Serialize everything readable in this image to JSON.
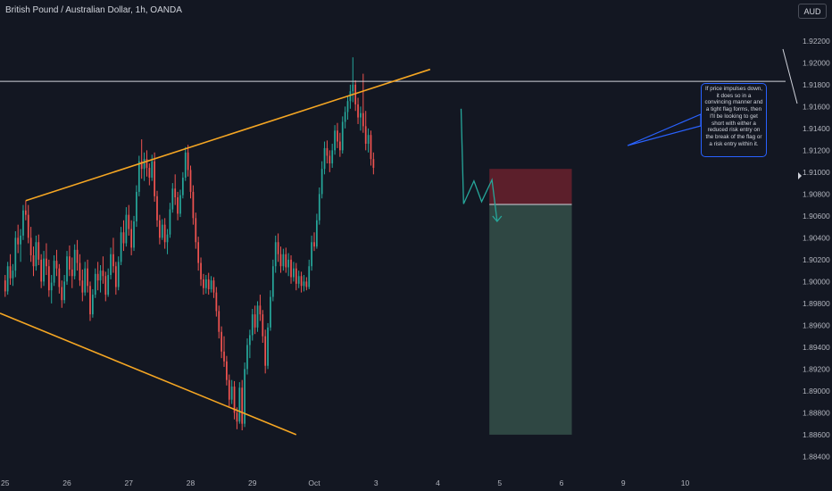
{
  "header": {
    "title": "British Pound / Australian Dollar, 1h, OANDA",
    "currency": "AUD"
  },
  "annotation": {
    "text": "If price impulses down, it does so in a convincing manner and a tight flag forms, then I'll be looking to get short with either a reduced risk entry on the break of the flag or a risk entry within it."
  },
  "colors": {
    "background": "#131722",
    "bullish": "#26a69a",
    "bearish": "#ef5350",
    "trendline": "#f5a623",
    "resistance": "#d1d4dc",
    "stop_zone": "#5c1f2b",
    "target_zone": "#2f4743",
    "projection": "#26a69a",
    "callout": "#2962ff"
  },
  "chart_data": {
    "type": "candlestick",
    "symbol": "GBPAUD",
    "timeframe": "1h",
    "y_ticks": [
      "1.92200",
      "1.92000",
      "1.91800",
      "1.91600",
      "1.91400",
      "1.91200",
      "1.91000",
      "1.90800",
      "1.90600",
      "1.90400",
      "1.90200",
      "1.90000",
      "1.89800",
      "1.89600",
      "1.89400",
      "1.89200",
      "1.89000",
      "1.88800",
      "1.88600",
      "1.88400"
    ],
    "x_ticks": [
      {
        "label": "25",
        "t": 0
      },
      {
        "label": "26",
        "t": 24
      },
      {
        "label": "27",
        "t": 48
      },
      {
        "label": "28",
        "t": 72
      },
      {
        "label": "29",
        "t": 96
      },
      {
        "label": "Oct",
        "t": 120
      },
      {
        "label": "3",
        "t": 144
      },
      {
        "label": "4",
        "t": 168
      },
      {
        "label": "5",
        "t": 192
      },
      {
        "label": "6",
        "t": 216
      },
      {
        "label": "9",
        "t": 240
      },
      {
        "label": "10",
        "t": 264
      }
    ],
    "ylim": [
      1.8833,
      1.9237
    ],
    "xlim": [
      -2,
      303
    ],
    "resistance_level": 1.9183,
    "trendlines": [
      {
        "t1": 8,
        "p1": 1.9074,
        "t2": 165,
        "p2": 1.9194
      },
      {
        "t1": -2,
        "p1": 1.8971,
        "t2": 113,
        "p2": 1.886
      }
    ],
    "position": {
      "stop_zone": [
        1.9103,
        1.90705
      ],
      "target_zone": [
        1.90705,
        1.886
      ],
      "t_start": 188,
      "t_end": 220
    },
    "projection_path": [
      {
        "t": 177,
        "p": 1.9158
      },
      {
        "t": 178,
        "p": 1.9071
      },
      {
        "t": 182,
        "p": 1.9092
      },
      {
        "t": 185,
        "p": 1.9073
      },
      {
        "t": 189,
        "p": 1.9093
      },
      {
        "t": 191,
        "p": 1.9055
      }
    ],
    "candles": [
      [
        1.9001,
        1.9006,
        1.8986,
        1.8991
      ],
      [
        1.8991,
        1.9018,
        1.8988,
        1.9014
      ],
      [
        1.9014,
        1.9025,
        1.8997,
        1.9003
      ],
      [
        1.9003,
        1.9016,
        1.8996,
        1.901
      ],
      [
        1.901,
        1.9046,
        1.9004,
        1.904
      ],
      [
        1.904,
        1.9052,
        1.9026,
        1.9034
      ],
      [
        1.9034,
        1.9048,
        1.9018,
        1.9042
      ],
      [
        1.9042,
        1.907,
        1.9038,
        1.9065
      ],
      [
        1.9065,
        1.9074,
        1.9056,
        1.9061
      ],
      [
        1.9061,
        1.907,
        1.9035,
        1.904
      ],
      [
        1.904,
        1.905,
        1.9018,
        1.9024
      ],
      [
        1.9024,
        1.9032,
        1.9005,
        1.9014
      ],
      [
        1.9014,
        1.9042,
        1.901,
        1.9036
      ],
      [
        1.9036,
        1.9043,
        1.9015,
        1.902
      ],
      [
        1.902,
        1.9025,
        1.8994,
        1.9
      ],
      [
        1.9,
        1.9028,
        1.8996,
        1.9021
      ],
      [
        1.9021,
        1.9035,
        1.9006,
        1.9014
      ],
      [
        1.9014,
        1.902,
        1.8986,
        1.8992
      ],
      [
        1.8992,
        1.9006,
        1.898,
        1.8999
      ],
      [
        1.8999,
        1.9024,
        1.8996,
        1.9019
      ],
      [
        1.9019,
        1.9029,
        1.9005,
        1.9012
      ],
      [
        1.9012,
        1.9016,
        1.8989,
        1.8995
      ],
      [
        1.8995,
        1.9001,
        1.8976,
        1.8983
      ],
      [
        1.8983,
        1.9006,
        1.898,
        1.9
      ],
      [
        1.9,
        1.9028,
        1.8997,
        1.9023
      ],
      [
        1.9023,
        1.9033,
        1.9005,
        1.9011
      ],
      [
        1.9011,
        1.9022,
        1.8994,
        1.9005
      ],
      [
        1.9005,
        1.9034,
        1.9002,
        1.9029
      ],
      [
        1.9029,
        1.9038,
        1.901,
        1.9017
      ],
      [
        1.9017,
        1.9025,
        1.8996,
        1.9001
      ],
      [
        1.9001,
        1.9011,
        1.8982,
        1.899
      ],
      [
        1.899,
        1.9018,
        1.8987,
        1.9012
      ],
      [
        1.9012,
        1.902,
        1.899,
        1.8996
      ],
      [
        1.8996,
        1.9,
        1.8964,
        1.897
      ],
      [
        1.897,
        1.8993,
        1.8967,
        1.8988
      ],
      [
        1.8988,
        1.9012,
        1.8985,
        1.9007
      ],
      [
        1.9007,
        1.9018,
        1.8992,
        1.9001
      ],
      [
        1.9001,
        1.9015,
        1.899,
        1.901
      ],
      [
        1.901,
        1.9023,
        1.8998,
        1.9005
      ],
      [
        1.9005,
        1.9009,
        1.8982,
        1.8988
      ],
      [
        1.8988,
        1.9012,
        1.8986,
        1.9006
      ],
      [
        1.9006,
        1.9031,
        1.9002,
        1.9025
      ],
      [
        1.9025,
        1.904,
        1.9008,
        1.9014
      ],
      [
        1.9014,
        1.9018,
        1.8988,
        1.8995
      ],
      [
        1.8995,
        1.9023,
        1.8992,
        1.9018
      ],
      [
        1.9018,
        1.905,
        1.9015,
        1.9045
      ],
      [
        1.9045,
        1.9056,
        1.9028,
        1.9035
      ],
      [
        1.9035,
        1.9068,
        1.9032,
        1.9061
      ],
      [
        1.9061,
        1.907,
        1.9042,
        1.9048
      ],
      [
        1.9048,
        1.9056,
        1.9024,
        1.9031
      ],
      [
        1.9031,
        1.906,
        1.9028,
        1.9055
      ],
      [
        1.9055,
        1.9088,
        1.905,
        1.9082
      ],
      [
        1.9082,
        1.9115,
        1.9078,
        1.911
      ],
      [
        1.911,
        1.913,
        1.9094,
        1.9103
      ],
      [
        1.9103,
        1.9118,
        1.9092,
        1.9112
      ],
      [
        1.9112,
        1.912,
        1.9096,
        1.9104
      ],
      [
        1.9104,
        1.9108,
        1.9088,
        1.9095
      ],
      [
        1.9095,
        1.9116,
        1.9092,
        1.911
      ],
      [
        1.911,
        1.9118,
        1.9073,
        1.9078
      ],
      [
        1.9078,
        1.9083,
        1.905,
        1.9056
      ],
      [
        1.9056,
        1.9061,
        1.9034,
        1.904
      ],
      [
        1.904,
        1.9057,
        1.9038,
        1.9052
      ],
      [
        1.9052,
        1.9058,
        1.903,
        1.9036
      ],
      [
        1.9036,
        1.9048,
        1.9025,
        1.9043
      ],
      [
        1.9043,
        1.9072,
        1.904,
        1.9066
      ],
      [
        1.9066,
        1.909,
        1.9063,
        1.9085
      ],
      [
        1.9085,
        1.9098,
        1.907,
        1.9077
      ],
      [
        1.9077,
        1.9082,
        1.9056,
        1.9062
      ],
      [
        1.9062,
        1.9084,
        1.9059,
        1.9079
      ],
      [
        1.9079,
        1.91,
        1.9076,
        1.9095
      ],
      [
        1.9095,
        1.9123,
        1.9092,
        1.9118
      ],
      [
        1.9118,
        1.9125,
        1.9096,
        1.9102
      ],
      [
        1.9102,
        1.9106,
        1.9076,
        1.9082
      ],
      [
        1.9082,
        1.9088,
        1.9052,
        1.9058
      ],
      [
        1.9058,
        1.9063,
        1.903,
        1.9036
      ],
      [
        1.9036,
        1.9041,
        1.901,
        1.9017
      ],
      [
        1.9017,
        1.9022,
        1.8996,
        1.9002
      ],
      [
        1.9002,
        1.9007,
        1.8988,
        1.8994
      ],
      [
        1.8994,
        1.9006,
        1.8989,
        1.9002
      ],
      [
        1.9002,
        1.9008,
        1.8988,
        1.8993
      ],
      [
        1.8993,
        1.9005,
        1.899,
        1.9001
      ],
      [
        1.9001,
        1.9004,
        1.8985,
        1.899
      ],
      [
        1.899,
        1.8995,
        1.8968,
        1.8973
      ],
      [
        1.8973,
        1.8978,
        1.8948,
        1.8954
      ],
      [
        1.8954,
        1.8959,
        1.893,
        1.8936
      ],
      [
        1.8936,
        1.895,
        1.8922,
        1.8927
      ],
      [
        1.8927,
        1.8932,
        1.8905,
        1.891
      ],
      [
        1.891,
        1.8915,
        1.8886,
        1.8892
      ],
      [
        1.8892,
        1.891,
        1.8888,
        1.8904
      ],
      [
        1.8904,
        1.8909,
        1.8874,
        1.888
      ],
      [
        1.888,
        1.8885,
        1.8865,
        1.8872
      ],
      [
        1.8872,
        1.8908,
        1.887,
        1.8903
      ],
      [
        1.8903,
        1.891,
        1.8864,
        1.887
      ],
      [
        1.887,
        1.8926,
        1.8867,
        1.892
      ],
      [
        1.892,
        1.8948,
        1.8915,
        1.8942
      ],
      [
        1.8942,
        1.8956,
        1.893,
        1.8951
      ],
      [
        1.8951,
        1.8975,
        1.8946,
        1.897
      ],
      [
        1.897,
        1.8978,
        1.8952,
        1.8958
      ],
      [
        1.8958,
        1.8982,
        1.8954,
        1.8978
      ],
      [
        1.8978,
        1.8988,
        1.8964,
        1.897
      ],
      [
        1.897,
        1.8974,
        1.8944,
        1.895
      ],
      [
        1.895,
        1.8956,
        1.8916,
        1.8923
      ],
      [
        1.8923,
        1.8962,
        1.892,
        1.8958
      ],
      [
        1.8958,
        1.8992,
        1.8955,
        1.8986
      ],
      [
        1.8986,
        1.902,
        1.8982,
        1.9014
      ],
      [
        1.9014,
        1.9042,
        1.9008,
        1.9036
      ],
      [
        1.9036,
        1.9044,
        1.9018,
        1.9025
      ],
      [
        1.9025,
        1.9032,
        1.9008,
        1.9014
      ],
      [
        1.9014,
        1.903,
        1.901,
        1.9025
      ],
      [
        1.9025,
        1.9031,
        1.9008,
        1.9013
      ],
      [
        1.9013,
        1.9026,
        1.9005,
        1.902
      ],
      [
        1.902,
        1.9024,
        1.8998,
        1.9004
      ],
      [
        1.9004,
        1.9018,
        1.9,
        1.9012
      ],
      [
        1.9012,
        1.9017,
        1.8992,
        1.8998
      ],
      [
        1.8998,
        1.901,
        1.8994,
        1.9005
      ],
      [
        1.9005,
        1.9009,
        1.899,
        1.8996
      ],
      [
        1.8996,
        1.9006,
        1.8991,
        1.9
      ],
      [
        1.9,
        1.9004,
        1.8992,
        1.8995
      ],
      [
        1.8995,
        1.902,
        1.8993,
        1.9014
      ],
      [
        1.9014,
        1.9042,
        1.901,
        1.9036
      ],
      [
        1.9036,
        1.9045,
        1.9028,
        1.9032
      ],
      [
        1.9032,
        1.9062,
        1.903,
        1.9056
      ],
      [
        1.9056,
        1.9086,
        1.9052,
        1.908
      ],
      [
        1.908,
        1.911,
        1.9076,
        1.9103
      ],
      [
        1.9103,
        1.9128,
        1.9098,
        1.9122
      ],
      [
        1.9122,
        1.9129,
        1.9108,
        1.9115
      ],
      [
        1.9115,
        1.912,
        1.91,
        1.9108
      ],
      [
        1.9108,
        1.9126,
        1.9104,
        1.912
      ],
      [
        1.912,
        1.9143,
        1.9116,
        1.9138
      ],
      [
        1.9138,
        1.9145,
        1.9122,
        1.9128
      ],
      [
        1.9128,
        1.9136,
        1.9114,
        1.912
      ],
      [
        1.912,
        1.9151,
        1.9117,
        1.9146
      ],
      [
        1.9146,
        1.916,
        1.914,
        1.9155
      ],
      [
        1.9155,
        1.917,
        1.9148,
        1.9165
      ],
      [
        1.9165,
        1.918,
        1.9158,
        1.9174
      ],
      [
        1.9174,
        1.9205,
        1.9164,
        1.918
      ],
      [
        1.918,
        1.9184,
        1.9156,
        1.9162
      ],
      [
        1.9162,
        1.9168,
        1.9144,
        1.915
      ],
      [
        1.915,
        1.916,
        1.9138,
        1.9154
      ],
      [
        1.9154,
        1.919,
        1.9136,
        1.9142
      ],
      [
        1.9142,
        1.9156,
        1.912,
        1.9126
      ],
      [
        1.9126,
        1.914,
        1.9118,
        1.9134
      ],
      [
        1.9134,
        1.9138,
        1.9106,
        1.9112
      ],
      [
        1.9112,
        1.9118,
        1.9098,
        1.9104
      ]
    ]
  }
}
